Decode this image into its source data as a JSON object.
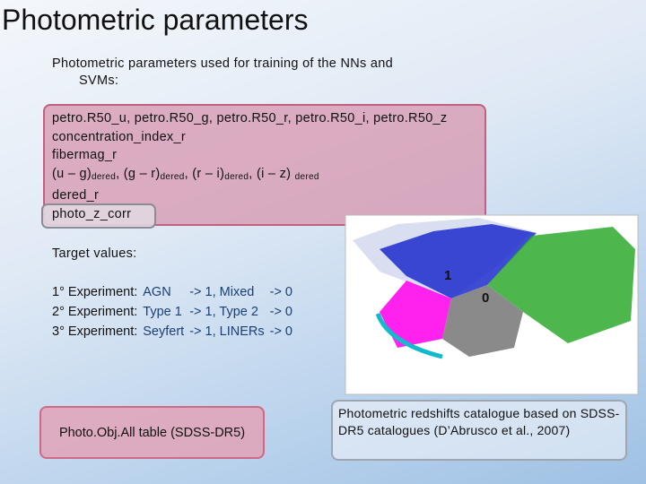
{
  "title": "Photometric parameters",
  "subtitle": [
    "Photometric parameters used for training of the NNs and",
    "SVMs:"
  ],
  "parameters": [
    "petro.R50_u, petro.R50_g, petro.R50_r, petro.R50_i, petro.R50_z",
    "concentration_index_r",
    "fibermag_r"
  ],
  "colors_line": [
    "(u – g)",
    "dered",
    ", (g – r)",
    "dered",
    ", (r – i)",
    "dered",
    ", (i – z) ",
    "dered"
  ],
  "parameters_tail": [
    "dered_r",
    "photo_z_corr"
  ],
  "target_heading": "Target values:",
  "experiments": [
    [
      "1° Experiment:",
      "AGN",
      "-> 1, Mixed",
      "-> 0"
    ],
    [
      "2° Experiment:",
      "Type 1",
      "-> 1, Type 2",
      "-> 0"
    ],
    [
      "3° Experiment:",
      "Seyfert",
      "-> 1, LINERs",
      "-> 0"
    ]
  ],
  "plot_labels": [
    "1",
    "0"
  ],
  "source_table": "Photo.Obj.All table (SDSS-DR5)",
  "catalogue_note": "Photometric redshifts catalogue based on SDSS-DR5 catalogues (D’Abrusco et al., 2007)"
}
